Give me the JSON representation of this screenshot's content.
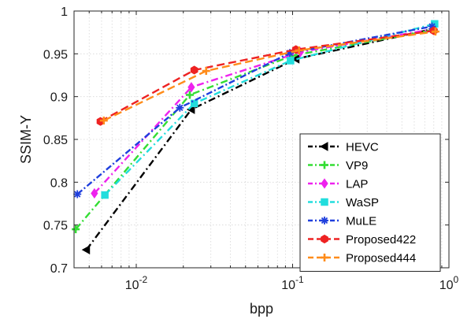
{
  "chart_data": {
    "type": "line",
    "title": "",
    "xlabel": "bpp",
    "ylabel": "SSIM-Y",
    "xscale": "log",
    "xlim": [
      0.004,
      1
    ],
    "ylim": [
      0.7,
      1
    ],
    "x_ticks": [
      0.01,
      0.1,
      1
    ],
    "x_tick_labels": [
      {
        "base": "10",
        "exp": "-2"
      },
      {
        "base": "10",
        "exp": "-1"
      },
      {
        "base": "10",
        "exp": "0"
      }
    ],
    "y_ticks": [
      0.7,
      0.75,
      0.8,
      0.85,
      0.9,
      0.95,
      1
    ],
    "y_tick_labels": [
      "0.7",
      "0.75",
      "0.8",
      "0.85",
      "0.9",
      "0.95",
      "1"
    ],
    "grid": true,
    "legend_position": "bottom-right",
    "series": [
      {
        "name": "HEVC",
        "color": "#000000",
        "marker": "triangle-left",
        "x": [
          0.0048,
          0.0225,
          0.105,
          0.79
        ],
        "y": [
          0.721,
          0.885,
          0.944,
          0.979
        ]
      },
      {
        "name": "VP9",
        "color": "#33dd33",
        "marker": "plus",
        "x": [
          0.0041,
          0.022,
          0.1,
          0.8
        ],
        "y": [
          0.745,
          0.902,
          0.948,
          0.978
        ]
      },
      {
        "name": "LAP",
        "color": "#ee22ee",
        "marker": "diamond",
        "x": [
          0.0054,
          0.0225,
          0.112,
          0.8
        ],
        "y": [
          0.787,
          0.911,
          0.952,
          0.979
        ]
      },
      {
        "name": "WaSP",
        "color": "#22dddd",
        "marker": "square",
        "x": [
          0.0063,
          0.0235,
          0.097,
          0.81
        ],
        "y": [
          0.785,
          0.892,
          0.942,
          0.985
        ]
      },
      {
        "name": "MuLE",
        "color": "#1f3fdd",
        "marker": "asterisk",
        "x": [
          0.0042,
          0.019,
          0.096,
          0.78
        ],
        "y": [
          0.786,
          0.887,
          0.951,
          0.982
        ]
      },
      {
        "name": "Proposed422",
        "color": "#ee2222",
        "marker": "hexagon",
        "x": [
          0.0059,
          0.0235,
          0.105,
          0.8
        ],
        "y": [
          0.871,
          0.931,
          0.955,
          0.977
        ]
      },
      {
        "name": "Proposed444",
        "color": "#ff8c1a",
        "marker": "plus",
        "x": [
          0.0062,
          0.028,
          0.11,
          0.82
        ],
        "y": [
          0.872,
          0.93,
          0.954,
          0.976
        ]
      }
    ]
  }
}
